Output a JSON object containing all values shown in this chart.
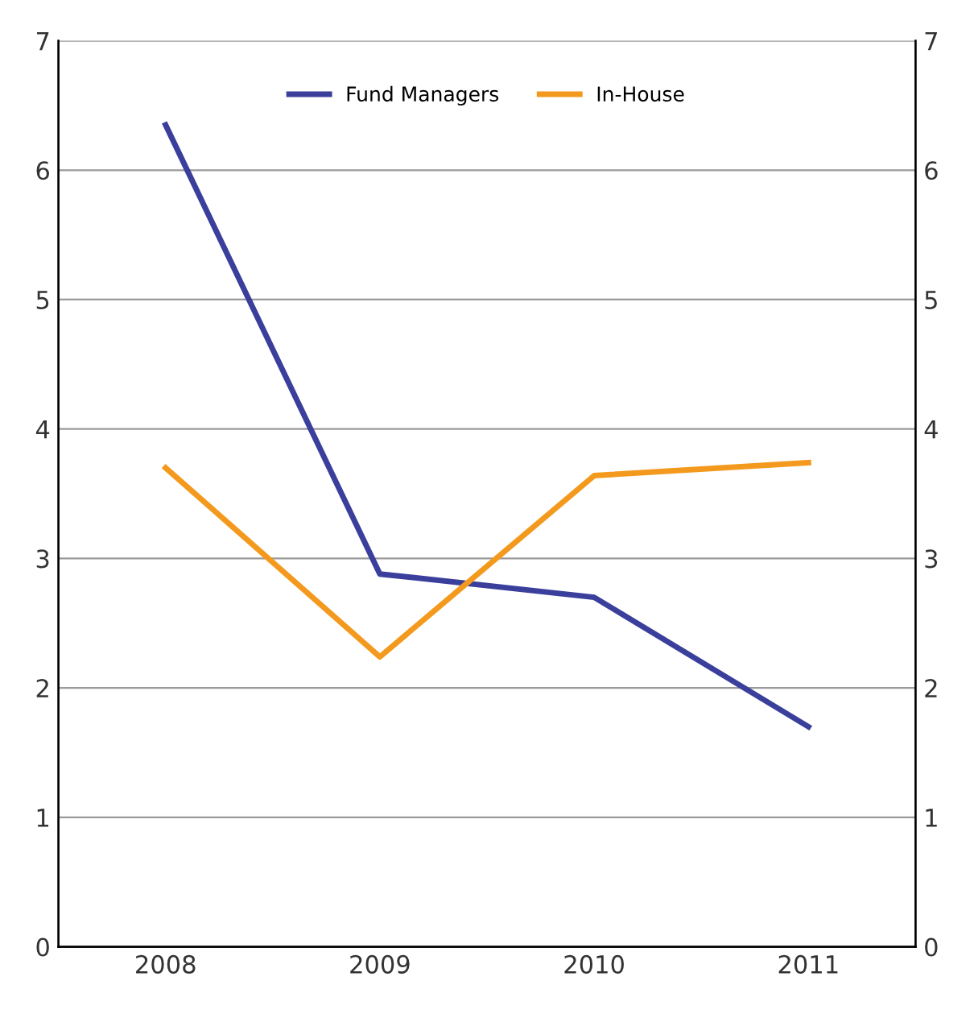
{
  "chart_data": {
    "type": "line",
    "categories": [
      "2008",
      "2009",
      "2010",
      "2011"
    ],
    "series": [
      {
        "name": "Fund Managers",
        "color": "#3b3f9c",
        "values": [
          6.35,
          2.88,
          2.7,
          1.7
        ]
      },
      {
        "name": "In-House",
        "color": "#f39a1e",
        "values": [
          3.7,
          2.24,
          3.64,
          3.74
        ]
      }
    ],
    "ylim": [
      0,
      7
    ],
    "yticks": [
      0,
      1,
      2,
      3,
      4,
      5,
      6,
      7
    ],
    "y2lim": [
      0,
      7
    ],
    "y2ticks": [
      0,
      1,
      2,
      3,
      4,
      5,
      6,
      7
    ],
    "grid": "y",
    "legend": "top",
    "marker": "none",
    "line_style": "solid"
  }
}
